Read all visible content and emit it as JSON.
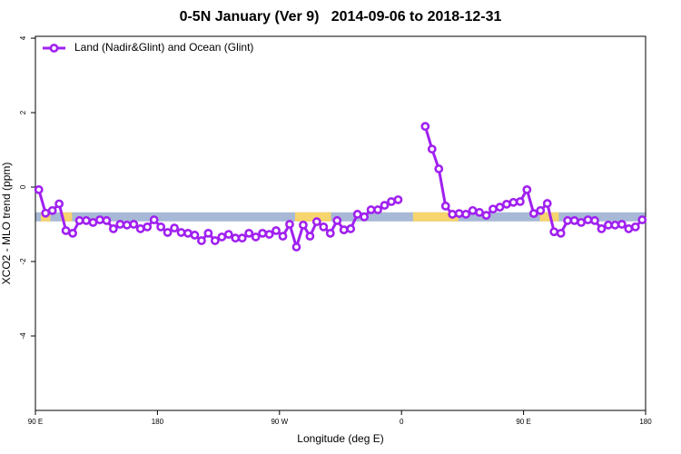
{
  "chart_data": {
    "type": "line",
    "title": "0-5N January (Ver 9)   2014-09-06 to 2018-12-31",
    "x_label": "Longitude (deg E)",
    "y_label": "XCO2 - MLO trend (ppm)",
    "xlim": [
      90,
      540
    ],
    "xticks": [
      {
        "value": 90,
        "label": "90 E"
      },
      180,
      {
        "value": 270,
        "label": "90 W"
      },
      {
        "value": 360,
        "label": "0"
      },
      {
        "value": 450,
        "label": "90 E"
      },
      {
        "value": 540,
        "label": "180"
      }
    ],
    "ylim": [
      -6,
      4.05
    ],
    "yticks": [
      -4,
      -2,
      0,
      2,
      4
    ],
    "legend": "top-left",
    "x": [
      92.5,
      97.5,
      102.5,
      107.5,
      112.5,
      117.5,
      122.5,
      127.5,
      132.5,
      137.5,
      142.5,
      147.5,
      152.5,
      157.5,
      162.5,
      167.5,
      172.5,
      177.5,
      182.5,
      187.5,
      192.5,
      197.5,
      202.5,
      207.5,
      212.5,
      217.5,
      222.5,
      227.5,
      232.5,
      237.5,
      242.5,
      247.5,
      252.5,
      257.5,
      262.5,
      267.5,
      272.5,
      277.5,
      282.5,
      287.5,
      292.5,
      297.5,
      302.5,
      307.5,
      312.5,
      317.5,
      322.5,
      327.5,
      332.5,
      337.5,
      342.5,
      347.5,
      352.5,
      357.5,
      362.5,
      367.5,
      372.5,
      377.5,
      382.5,
      387.5,
      392.5,
      397.5,
      402.5,
      407.5,
      412.5,
      417.5,
      422.5,
      427.5,
      432.5,
      437.5,
      442.5,
      447.5,
      452.5,
      457.5,
      462.5,
      467.5,
      472.5,
      477.5,
      482.5,
      487.5,
      492.5,
      497.5,
      502.5,
      507.5,
      512.5,
      517.5,
      522.5,
      527.5,
      532.5,
      537.5
    ],
    "series": [
      {
        "name": "Land (Nadir&Glint) and Ocean (Glint)",
        "color": "#a020f0",
        "values": [
          -0.07,
          -0.7,
          -0.63,
          -0.45,
          -1.17,
          -1.24,
          -0.9,
          -0.9,
          -0.95,
          -0.88,
          -0.9,
          -1.12,
          -1.0,
          -1.02,
          -1.0,
          -1.12,
          -1.07,
          -0.88,
          -1.07,
          -1.22,
          -1.1,
          -1.22,
          -1.24,
          -1.29,
          -1.44,
          -1.24,
          -1.44,
          -1.34,
          -1.27,
          -1.37,
          -1.37,
          -1.24,
          -1.34,
          -1.24,
          -1.27,
          -1.17,
          -1.32,
          -1.0,
          -1.61,
          -1.02,
          -1.32,
          -0.93,
          -1.07,
          -1.24,
          -0.9,
          -1.15,
          -1.12,
          -0.73,
          -0.8,
          -0.61,
          -0.61,
          -0.49,
          -0.39,
          -0.34,
          null,
          null,
          null,
          1.63,
          1.02,
          0.49,
          -0.51,
          -0.73,
          -0.71,
          -0.73,
          -0.63,
          -0.68,
          -0.76,
          -0.59,
          -0.54,
          -0.46,
          -0.41,
          -0.39,
          -0.07,
          -0.71,
          -0.63,
          -0.44,
          -1.2,
          -1.24,
          -0.9,
          -0.9,
          -0.95,
          -0.88,
          -0.9,
          -1.12,
          -1.02,
          -1.02,
          -1.0,
          -1.12,
          -1.07,
          -0.88
        ]
      }
    ],
    "mask": {
      "value": -0.8,
      "ocean_color": "#a7b9d6",
      "land_color": "#f6d46e",
      "land": [
        [
          94,
          101
        ],
        [
          109,
          117
        ],
        [
          281.5,
          308
        ],
        [
          368.5,
          402
        ],
        [
          462,
          476
        ]
      ]
    }
  }
}
